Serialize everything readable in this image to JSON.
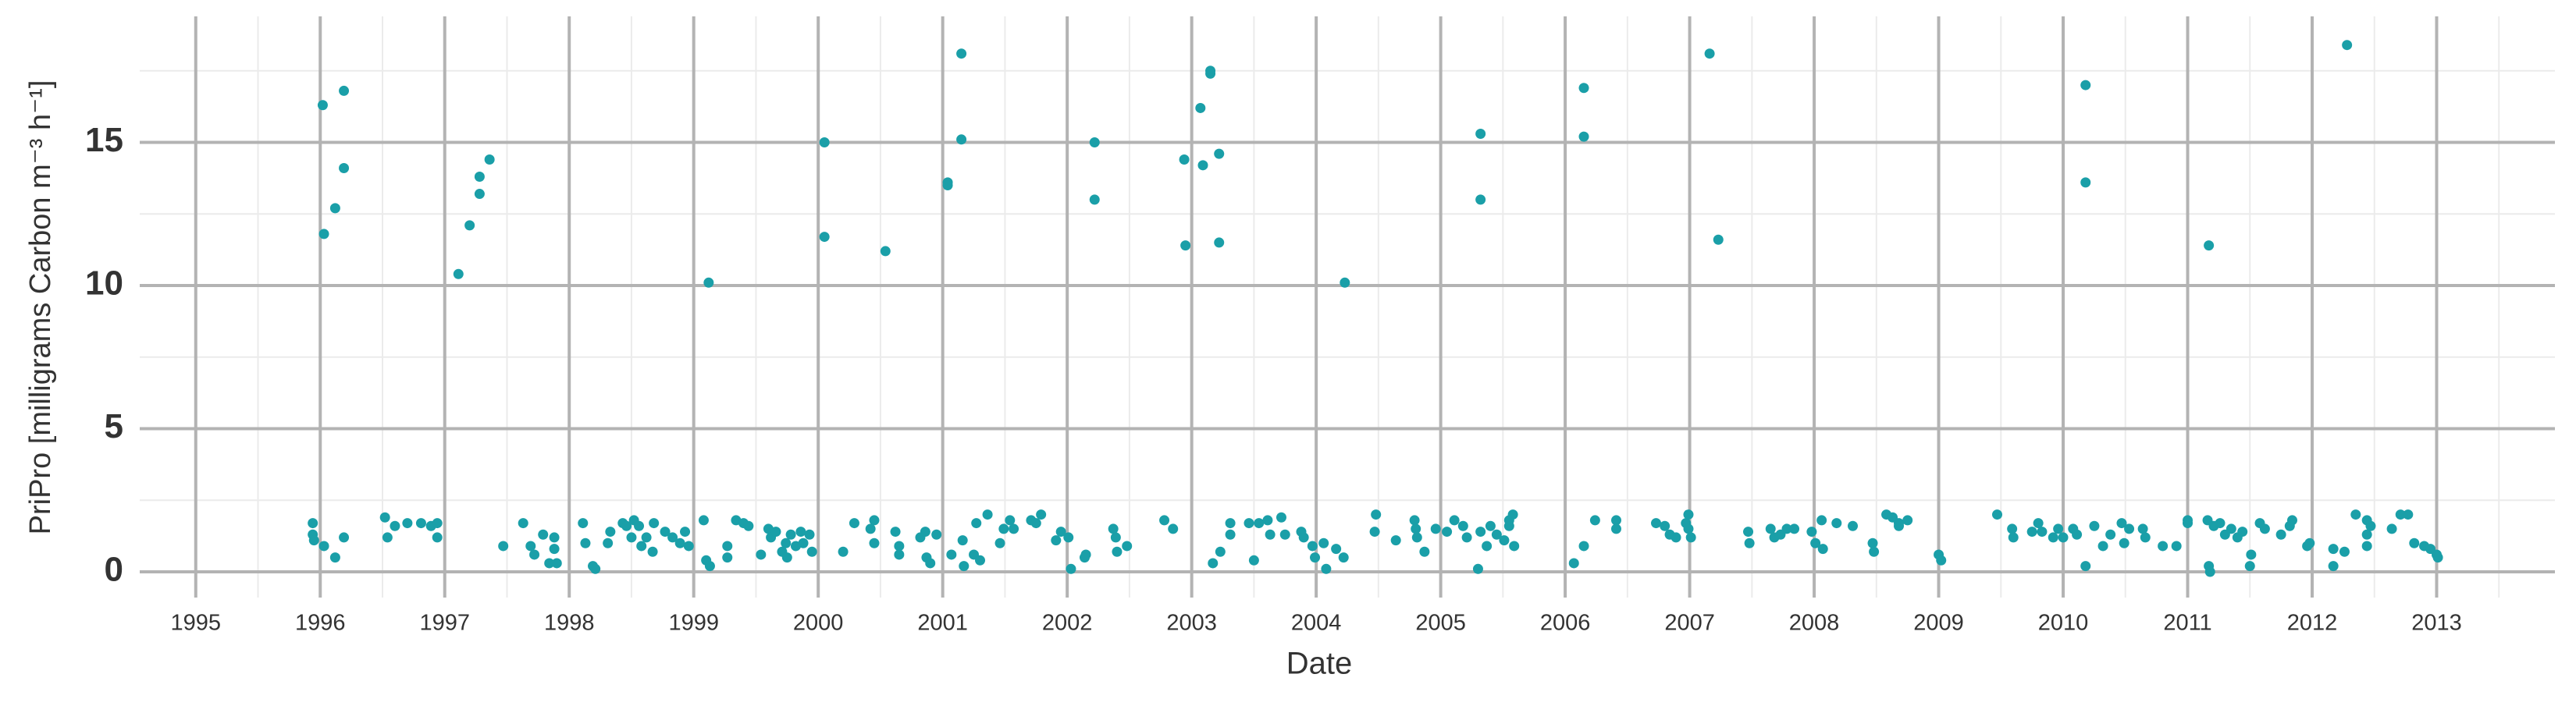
{
  "chart_data": {
    "type": "scatter",
    "y_label": "PriPro [milligrams Carbon m⁻³ h⁻¹]",
    "x_label": "Date",
    "color": "#1a9fa8",
    "grid": true,
    "xlim": [
      1994.55,
      2013.95
    ],
    "ylim": [
      -0.9,
      19.4
    ],
    "xticks": [
      1995,
      1996,
      1997,
      1998,
      1999,
      2000,
      2001,
      2002,
      2003,
      2004,
      2005,
      2006,
      2007,
      2008,
      2009,
      2010,
      2011,
      2012,
      2013
    ],
    "yticks": [
      0,
      5,
      10,
      15
    ],
    "x": [
      1996.02,
      1996.03,
      1996.12,
      1996.19,
      1996.19,
      1997.11,
      1997.2,
      1997.28,
      1997.28,
      1997.36,
      1999.12,
      2000.05,
      2000.05,
      2000.54,
      2001.04,
      2001.04,
      2001.15,
      2001.15,
      2002.22,
      2002.22,
      2002.94,
      2002.95,
      2003.07,
      2003.09,
      2003.15,
      2003.15,
      2003.22,
      2003.22,
      2004.23,
      2005.32,
      2005.32,
      2006.15,
      2006.15,
      2007.16,
      2007.23,
      2010.18,
      2010.18,
      2011.17,
      2012.28,
      1995.94,
      1995.94,
      1995.95,
      1996.03,
      1996.12,
      1996.19,
      1996.52,
      1996.54,
      1996.6,
      1996.7,
      1996.81,
      1996.89,
      1996.94,
      1996.94,
      1997.47,
      1997.63,
      1997.69,
      1997.72,
      1997.79,
      1997.84,
      1997.88,
      1997.88,
      1997.9,
      1998.11,
      1998.13,
      1998.19,
      1998.21,
      1998.31,
      1998.33,
      1998.43,
      1998.46,
      1998.5,
      1998.52,
      1998.56,
      1998.58,
      1998.62,
      1998.67,
      1998.68,
      1998.77,
      1998.83,
      1998.89,
      1998.93,
      1998.96,
      1999.08,
      1999.1,
      1999.13,
      1999.27,
      1999.27,
      1999.34,
      1999.4,
      1999.44,
      1999.54,
      1999.6,
      1999.62,
      1999.66,
      1999.71,
      1999.74,
      1999.75,
      1999.78,
      1999.82,
      1999.86,
      1999.88,
      1999.93,
      1999.95,
      2000.2,
      2000.29,
      2000.42,
      2000.45,
      2000.45,
      2000.62,
      2000.65,
      2000.65,
      2000.82,
      2000.86,
      2000.87,
      2000.9,
      2000.95,
      2001.07,
      2001.16,
      2001.17,
      2001.25,
      2001.27,
      2001.3,
      2001.36,
      2001.46,
      2001.49,
      2001.54,
      2001.57,
      2001.71,
      2001.75,
      2001.79,
      2001.91,
      2001.95,
      2002.01,
      2002.03,
      2002.14,
      2002.15,
      2002.37,
      2002.39,
      2002.4,
      2002.48,
      2002.78,
      2002.85,
      2003.17,
      2003.23,
      2003.31,
      2003.31,
      2003.46,
      2003.5,
      2003.54,
      2003.61,
      2003.63,
      2003.72,
      2003.75,
      2003.88,
      2003.9,
      2003.97,
      2003.99,
      2004.06,
      2004.08,
      2004.16,
      2004.22,
      2004.47,
      2004.48,
      2004.64,
      2004.79,
      2004.8,
      2004.81,
      2004.87,
      2004.96,
      2005.05,
      2005.11,
      2005.18,
      2005.21,
      2005.3,
      2005.32,
      2005.37,
      2005.4,
      2005.45,
      2005.51,
      2005.55,
      2005.55,
      2005.58,
      2005.59,
      2006.07,
      2006.15,
      2006.24,
      2006.41,
      2006.41,
      2006.73,
      2006.8,
      2006.84,
      2006.89,
      2006.97,
      2006.99,
      2006.99,
      2007.01,
      2007.47,
      2007.48,
      2007.65,
      2007.68,
      2007.73,
      2007.78,
      2007.84,
      2007.98,
      2008.01,
      2008.06,
      2008.07,
      2008.18,
      2008.31,
      2008.47,
      2008.48,
      2008.58,
      2008.63,
      2008.68,
      2008.68,
      2008.75,
      2009.0,
      2009.02,
      2009.47,
      2009.59,
      2009.6,
      2009.75,
      2009.8,
      2009.83,
      2009.92,
      2009.96,
      2010.0,
      2010.08,
      2010.11,
      2010.18,
      2010.25,
      2010.32,
      2010.38,
      2010.47,
      2010.49,
      2010.53,
      2010.64,
      2010.66,
      2010.8,
      2010.91,
      2011.0,
      2011.0,
      2011.16,
      2011.17,
      2011.18,
      2011.21,
      2011.26,
      2011.3,
      2011.35,
      2011.4,
      2011.44,
      2011.5,
      2011.51,
      2011.58,
      2011.62,
      2011.75,
      2011.82,
      2011.84,
      2011.96,
      2011.98,
      2012.17,
      2012.17,
      2012.26,
      2012.35,
      2012.44,
      2012.44,
      2012.44,
      2012.47,
      2012.64,
      2012.71,
      2012.77,
      2012.82,
      2012.9,
      2012.95,
      2013.0,
      2013.01
    ],
    "values": [
      16.3,
      11.8,
      12.7,
      16.8,
      14.1,
      10.4,
      12.1,
      13.2,
      13.8,
      14.4,
      10.1,
      15.0,
      11.7,
      11.2,
      13.6,
      13.5,
      18.1,
      15.1,
      15.0,
      13.0,
      14.4,
      11.4,
      16.2,
      14.2,
      17.5,
      17.4,
      14.6,
      11.5,
      10.1,
      15.3,
      13.0,
      16.9,
      15.2,
      18.1,
      11.6,
      17.0,
      13.6,
      11.4,
      18.4,
      1.7,
      1.3,
      1.1,
      0.9,
      0.5,
      1.2,
      1.9,
      1.2,
      1.6,
      1.7,
      1.7,
      1.6,
      1.2,
      1.7,
      0.9,
      1.7,
      0.9,
      0.6,
      1.3,
      0.3,
      1.2,
      0.8,
      0.3,
      1.7,
      1.0,
      0.2,
      0.1,
      1.0,
      1.4,
      1.7,
      1.6,
      1.2,
      1.8,
      1.6,
      0.9,
      1.2,
      0.7,
      1.7,
      1.4,
      1.2,
      1.0,
      1.4,
      0.9,
      1.8,
      0.4,
      0.2,
      0.9,
      0.5,
      1.8,
      1.7,
      1.6,
      0.6,
      1.5,
      1.2,
      1.4,
      0.7,
      1.0,
      0.5,
      1.3,
      0.9,
      1.4,
      1.0,
      1.3,
      0.7,
      0.7,
      1.7,
      1.5,
      1.8,
      1.0,
      1.4,
      0.9,
      0.6,
      1.2,
      1.4,
      0.5,
      0.3,
      1.3,
      0.6,
      1.1,
      0.2,
      0.6,
      1.7,
      0.4,
      2.0,
      1.0,
      1.5,
      1.8,
      1.5,
      1.8,
      1.7,
      2.0,
      1.1,
      1.4,
      1.2,
      0.1,
      0.5,
      0.6,
      1.5,
      1.2,
      0.7,
      0.9,
      1.8,
      1.5,
      0.3,
      0.7,
      1.7,
      1.3,
      1.7,
      0.4,
      1.7,
      1.8,
      1.3,
      1.9,
      1.3,
      1.4,
      1.2,
      0.9,
      0.5,
      1.0,
      0.1,
      0.8,
      0.5,
      1.4,
      2.0,
      1.1,
      1.8,
      1.5,
      1.2,
      0.7,
      1.5,
      1.4,
      1.8,
      1.6,
      1.2,
      0.1,
      1.4,
      0.9,
      1.6,
      1.3,
      1.1,
      1.8,
      1.6,
      2.0,
      0.9,
      0.3,
      0.9,
      1.8,
      1.8,
      1.5,
      1.7,
      1.6,
      1.3,
      1.2,
      1.7,
      2.0,
      1.5,
      1.2,
      1.4,
      1.0,
      1.5,
      1.2,
      1.3,
      1.5,
      1.5,
      1.4,
      1.0,
      1.8,
      0.8,
      1.7,
      1.6,
      1.0,
      0.7,
      2.0,
      1.9,
      1.7,
      1.6,
      1.8,
      0.6,
      0.4,
      2.0,
      1.5,
      1.2,
      1.4,
      1.7,
      1.4,
      1.2,
      1.5,
      1.2,
      1.5,
      1.3,
      0.2,
      1.6,
      0.9,
      1.3,
      1.7,
      1.0,
      1.5,
      1.5,
      1.2,
      0.9,
      0.9,
      1.8,
      1.7,
      1.8,
      0.2,
      0.0,
      1.6,
      1.7,
      1.3,
      1.5,
      1.2,
      1.4,
      0.2,
      0.6,
      1.7,
      1.5,
      1.3,
      1.6,
      1.8,
      0.9,
      1.0,
      0.8,
      0.2,
      0.7,
      2.0,
      1.8,
      1.3,
      0.9,
      1.6,
      1.5,
      2.0,
      2.0,
      1.0,
      0.9,
      0.8,
      0.6,
      0.5
    ]
  }
}
